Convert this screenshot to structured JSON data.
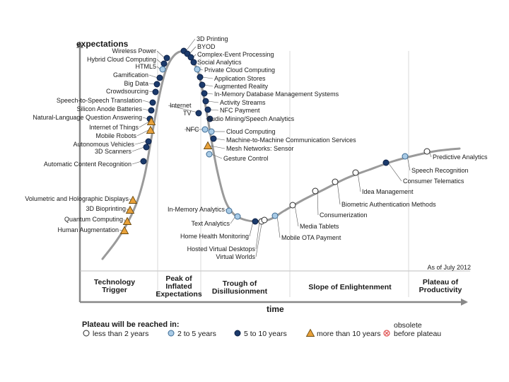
{
  "chart_data": {
    "type": "scatter",
    "ylabel": "expectations",
    "xlabel": "time",
    "as_of": "As of July 2012",
    "phases": [
      {
        "lines": [
          "Technology",
          "Trigger"
        ]
      },
      {
        "lines": [
          "Peak of",
          "Inflated",
          "Expectations"
        ]
      },
      {
        "lines": [
          "Trough of",
          "Disillusionment"
        ]
      },
      {
        "lines": [
          "Slope of Enlightenment"
        ]
      },
      {
        "lines": [
          "Plateau of",
          "Productivity"
        ]
      }
    ],
    "legend": {
      "title": "Plateau will be reached in:",
      "items": [
        {
          "key": "lt2",
          "label": "less than 2 years"
        },
        {
          "key": "2to5",
          "label": "2 to 5 years"
        },
        {
          "key": "5to10",
          "label": "5 to 10 years"
        },
        {
          "key": "gt10",
          "label": "more than 10 years"
        },
        {
          "key": "obsolete",
          "label": [
            "obsolete",
            "before plateau"
          ]
        }
      ]
    },
    "colors": {
      "curve": "#9a9a9a",
      "lt2": "#ffffff",
      "2to5": "#a9cbe6",
      "5to10": "#1b3a6b",
      "gt10": "#e8a13a",
      "obsolete": "#e05050",
      "axis": "#888888"
    },
    "technologies": [
      {
        "name": "3D Printing",
        "cat": "5to10"
      },
      {
        "name": "BYOD",
        "cat": "5to10"
      },
      {
        "name": "Complex-Event Processing",
        "cat": "5to10"
      },
      {
        "name": "Social Analytics",
        "cat": "5to10"
      },
      {
        "name": "Private Cloud Computing",
        "cat": "2to5"
      },
      {
        "name": "Application Stores",
        "cat": "5to10"
      },
      {
        "name": "Augmented Reality",
        "cat": "5to10"
      },
      {
        "name": "In-Memory Database Management Systems",
        "cat": "5to10"
      },
      {
        "name": "Activity Streams",
        "cat": "5to10"
      },
      {
        "name": "NFC Payment",
        "cat": "5to10"
      },
      {
        "name": "Audio Mining/Speech Analytics",
        "cat": "5to10"
      },
      {
        "name": "Internet TV",
        "cat": "5to10"
      },
      {
        "name": "NFC",
        "cat": "2to5"
      },
      {
        "name": "Cloud Computing",
        "cat": "2to5"
      },
      {
        "name": "Machine-to-Machine Communication Services",
        "cat": "5to10"
      },
      {
        "name": "Mesh Networks: Sensor",
        "cat": "gt10"
      },
      {
        "name": "Gesture Control",
        "cat": "2to5"
      },
      {
        "name": "Wireless Power",
        "cat": "5to10"
      },
      {
        "name": "Hybrid Cloud Computing",
        "cat": "5to10"
      },
      {
        "name": "HTML5",
        "cat": "2to5"
      },
      {
        "name": "Gamification",
        "cat": "5to10"
      },
      {
        "name": "Big Data",
        "cat": "5to10"
      },
      {
        "name": "Crowdsourcing",
        "cat": "5to10"
      },
      {
        "name": "Speech-to-Speech Translation",
        "cat": "5to10"
      },
      {
        "name": "Silicon Anode Batteries",
        "cat": "5to10"
      },
      {
        "name": "Natural-Language Question Answering",
        "cat": "5to10"
      },
      {
        "name": "Internet of Things",
        "cat": "gt10"
      },
      {
        "name": "Mobile Robots",
        "cat": "gt10"
      },
      {
        "name": "Autonomous Vehicles",
        "cat": "5to10"
      },
      {
        "name": "3D Scanners",
        "cat": "5to10"
      },
      {
        "name": "Automatic Content Recognition",
        "cat": "5to10"
      },
      {
        "name": "Volumetric and Holographic Displays",
        "cat": "gt10"
      },
      {
        "name": "3D Bioprinting",
        "cat": "gt10"
      },
      {
        "name": "Quantum Computing",
        "cat": "gt10"
      },
      {
        "name": "Human Augmentation",
        "cat": "gt10"
      },
      {
        "name": "In-Memory Analytics",
        "cat": "2to5"
      },
      {
        "name": "Text Analytics",
        "cat": "2to5"
      },
      {
        "name": "Home Health Monitoring",
        "cat": "5to10"
      },
      {
        "name": "Hosted Virtual Desktops",
        "cat": "lt2"
      },
      {
        "name": "Virtual Worlds",
        "cat": "lt2"
      },
      {
        "name": "Mobile OTA Payment",
        "cat": "2to5"
      },
      {
        "name": "Media Tablets",
        "cat": "lt2"
      },
      {
        "name": "Consumerization",
        "cat": "lt2"
      },
      {
        "name": "Biometric Authentication Methods",
        "cat": "lt2"
      },
      {
        "name": "Idea Management",
        "cat": "lt2"
      },
      {
        "name": "Consumer Telematics",
        "cat": "5to10"
      },
      {
        "name": "Speech Recognition",
        "cat": "2to5"
      },
      {
        "name": "Predictive Analytics",
        "cat": "lt2"
      }
    ]
  }
}
